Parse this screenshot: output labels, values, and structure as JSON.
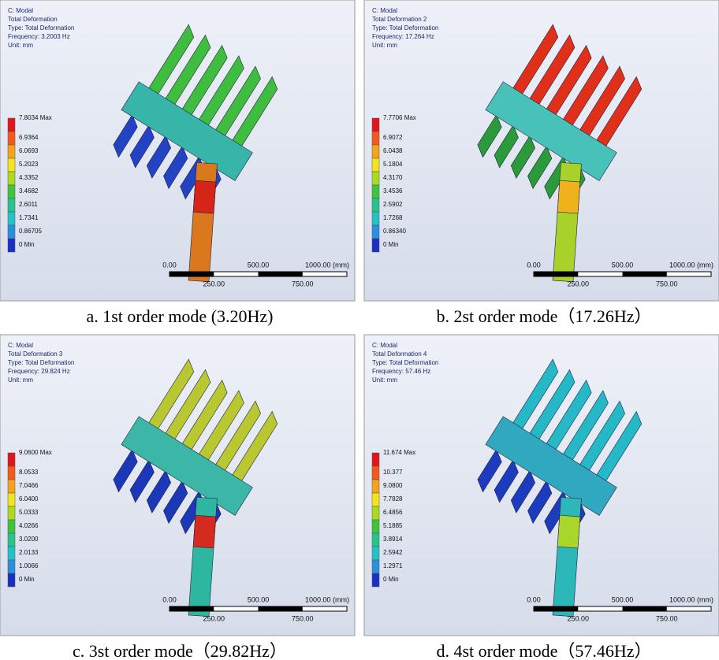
{
  "panels": [
    {
      "caption": "a. 1st order mode (3.20Hz)",
      "header": [
        "C: Modal",
        "Total Deformation",
        "Type: Total Deformation",
        "Frequency: 3.2003 Hz",
        "Unit: mm"
      ],
      "legend": [
        "7.8034 Max",
        "6.9364",
        "6.0693",
        "5.2023",
        "4.3352",
        "3.4682",
        "2.6011",
        "1.7341",
        "0.86705",
        "0 Min"
      ],
      "scale": [
        "0.00",
        "500.00",
        "1000.00 (mm)",
        "250.00",
        "750.00"
      ]
    },
    {
      "caption": "b. 2st order mode（17.26Hz）",
      "header": [
        "C: Modal",
        "Total Deformation 2",
        "Type: Total Deformation",
        "Frequency: 17.264 Hz",
        "Unit: mm"
      ],
      "legend": [
        "7.7706 Max",
        "6.9072",
        "6.0438",
        "5.1804",
        "4.3170",
        "3.4536",
        "2.5902",
        "1.7268",
        "0.86340",
        "0 Min"
      ],
      "scale": [
        "0.00",
        "500.00",
        "1000.00 (mm)",
        "250.00",
        "750.00"
      ]
    },
    {
      "caption": "c. 3st order mode（29.82Hz）",
      "header": [
        "C: Modal",
        "Total Deformation 3",
        "Type: Total Deformation",
        "Frequency: 29.824 Hz",
        "Unit: mm"
      ],
      "legend": [
        "9.0600 Max",
        "8.0533",
        "7.0466",
        "6.0400",
        "5.0333",
        "4.0266",
        "3.0200",
        "2.0133",
        "1.0066",
        "0 Min"
      ],
      "scale": [
        "0.00",
        "500.00",
        "1000.00 (mm)",
        "250.00",
        "750.00"
      ]
    },
    {
      "caption": "d. 4st order mode（57.46Hz）",
      "header": [
        "C: Modal",
        "Total Deformation 4",
        "Type: Total Deformation",
        "Frequency: 57.46 Hz",
        "Unit: mm"
      ],
      "legend": [
        "11.674 Max",
        "10.377",
        "9.0800",
        "7.7828",
        "6.4856",
        "5.1885",
        "3.8914",
        "2.5942",
        "1.2971",
        "0 Min"
      ],
      "scale": [
        "0.00",
        "500.00",
        "1000.00 (mm)",
        "250.00",
        "750.00"
      ]
    }
  ]
}
